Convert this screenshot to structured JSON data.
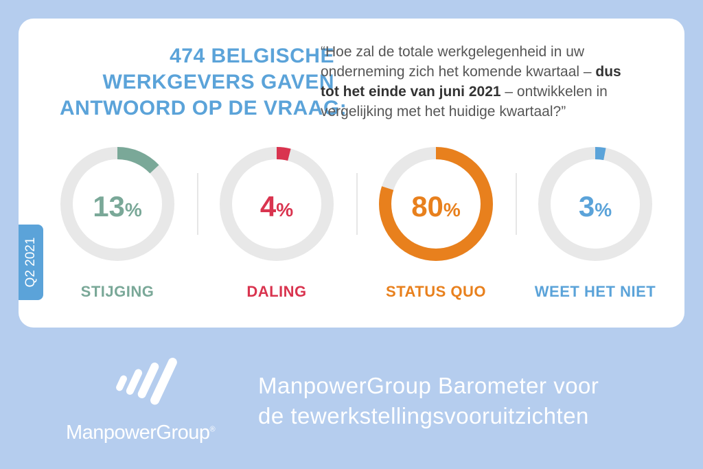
{
  "headline": [
    "474 BELGISCHE",
    "WERKGEVERS GAVEN",
    "ANTWOORD OP DE VRAAG:"
  ],
  "question": {
    "part1": "“Hoe zal de totale werkgelegenheid in uw",
    "part2": "onderneming zich het komende kwartaal –",
    "bold1": "dus",
    "bold2": "tot het einde van juni 2021",
    "part3": "– ontwikkelen in",
    "part4": "vergelijking met het huidige kwartaal?”"
  },
  "period_label": "Q2 2021",
  "colors": {
    "stijging": "#7aa898",
    "daling": "#d9344f",
    "status_quo": "#e8801d",
    "weet_niet": "#5ba3d9",
    "track": "#e8e8e8"
  },
  "chart_data": {
    "type": "pie",
    "style": "donut",
    "unit": "%",
    "categories": [
      "STIJGING",
      "DALING",
      "STATUS QUO",
      "WEET HET NIET"
    ],
    "values": [
      13,
      4,
      80,
      3
    ]
  },
  "pct_symbol": "%",
  "footer": {
    "logo_text": "ManpowerGroup",
    "logo_reg": "®",
    "title_line1": "ManpowerGroup Barometer voor",
    "title_line2": "de tewerkstellingsvooruitzichten"
  }
}
